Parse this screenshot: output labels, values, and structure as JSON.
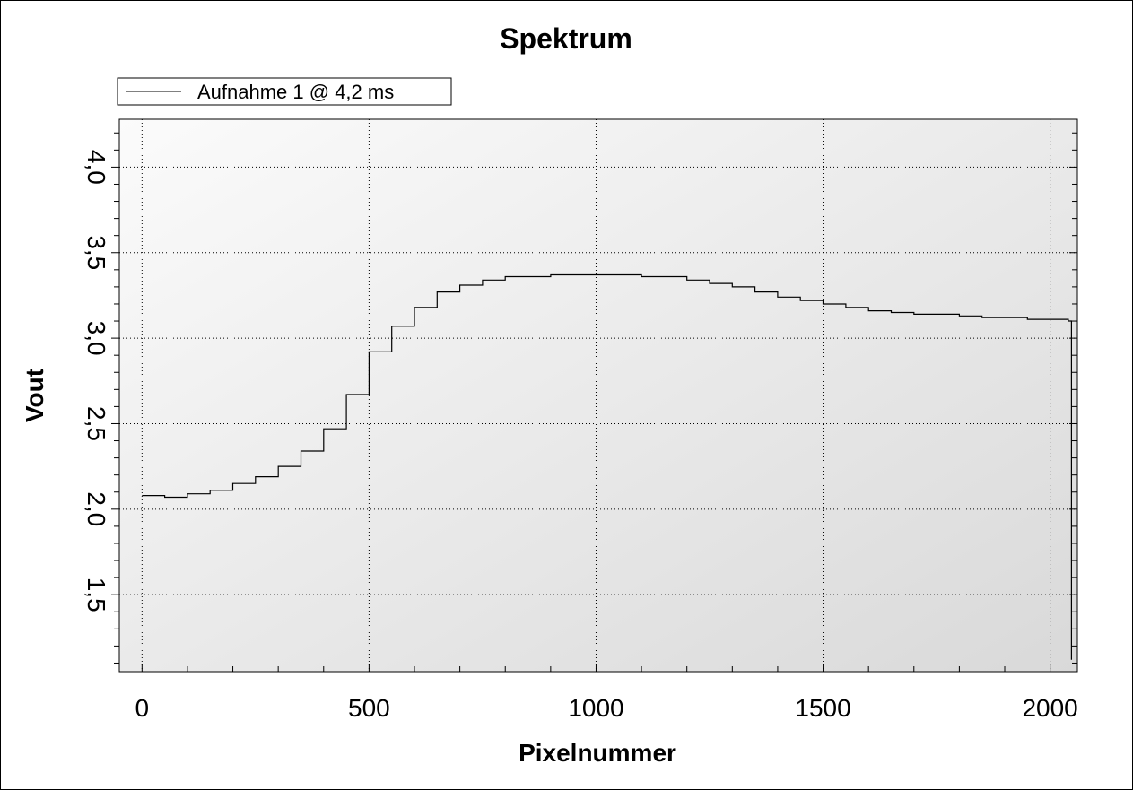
{
  "chart_data": {
    "type": "line",
    "title": "Spektrum",
    "xlabel": "Pixelnummer",
    "ylabel": "Vout",
    "xlim": [
      -50,
      2060
    ],
    "ylim": [
      1.05,
      4.28
    ],
    "x_ticks": [
      0,
      500,
      1000,
      1500,
      2000
    ],
    "x_tick_labels": [
      "0",
      "500",
      "1000",
      "1500",
      "2000"
    ],
    "y_ticks": [
      1.5,
      2.0,
      2.5,
      3.0,
      3.5,
      4.0
    ],
    "y_tick_labels": [
      "1,5",
      "2,0",
      "2,5",
      "3,0",
      "3,5",
      "4,0"
    ],
    "grid": true,
    "legend_position": "top-left",
    "series": [
      {
        "name": "Aufnahme 1 @ 4,2 ms",
        "color": "#000000",
        "x": [
          0,
          50,
          100,
          150,
          200,
          250,
          300,
          350,
          400,
          450,
          500,
          550,
          600,
          650,
          700,
          750,
          800,
          850,
          900,
          950,
          1000,
          1050,
          1100,
          1150,
          1200,
          1250,
          1300,
          1350,
          1400,
          1450,
          1500,
          1550,
          1600,
          1650,
          1700,
          1750,
          1800,
          1850,
          1900,
          1950,
          2000,
          2040,
          2047
        ],
        "y": [
          2.08,
          2.07,
          2.09,
          2.11,
          2.15,
          2.19,
          2.25,
          2.34,
          2.47,
          2.67,
          2.92,
          3.07,
          3.18,
          3.27,
          3.31,
          3.34,
          3.36,
          3.36,
          3.37,
          3.37,
          3.37,
          3.37,
          3.36,
          3.36,
          3.34,
          3.32,
          3.3,
          3.27,
          3.24,
          3.22,
          3.2,
          3.18,
          3.16,
          3.15,
          3.14,
          3.14,
          3.13,
          3.12,
          3.12,
          3.11,
          3.11,
          3.1,
          1.12
        ]
      }
    ]
  }
}
